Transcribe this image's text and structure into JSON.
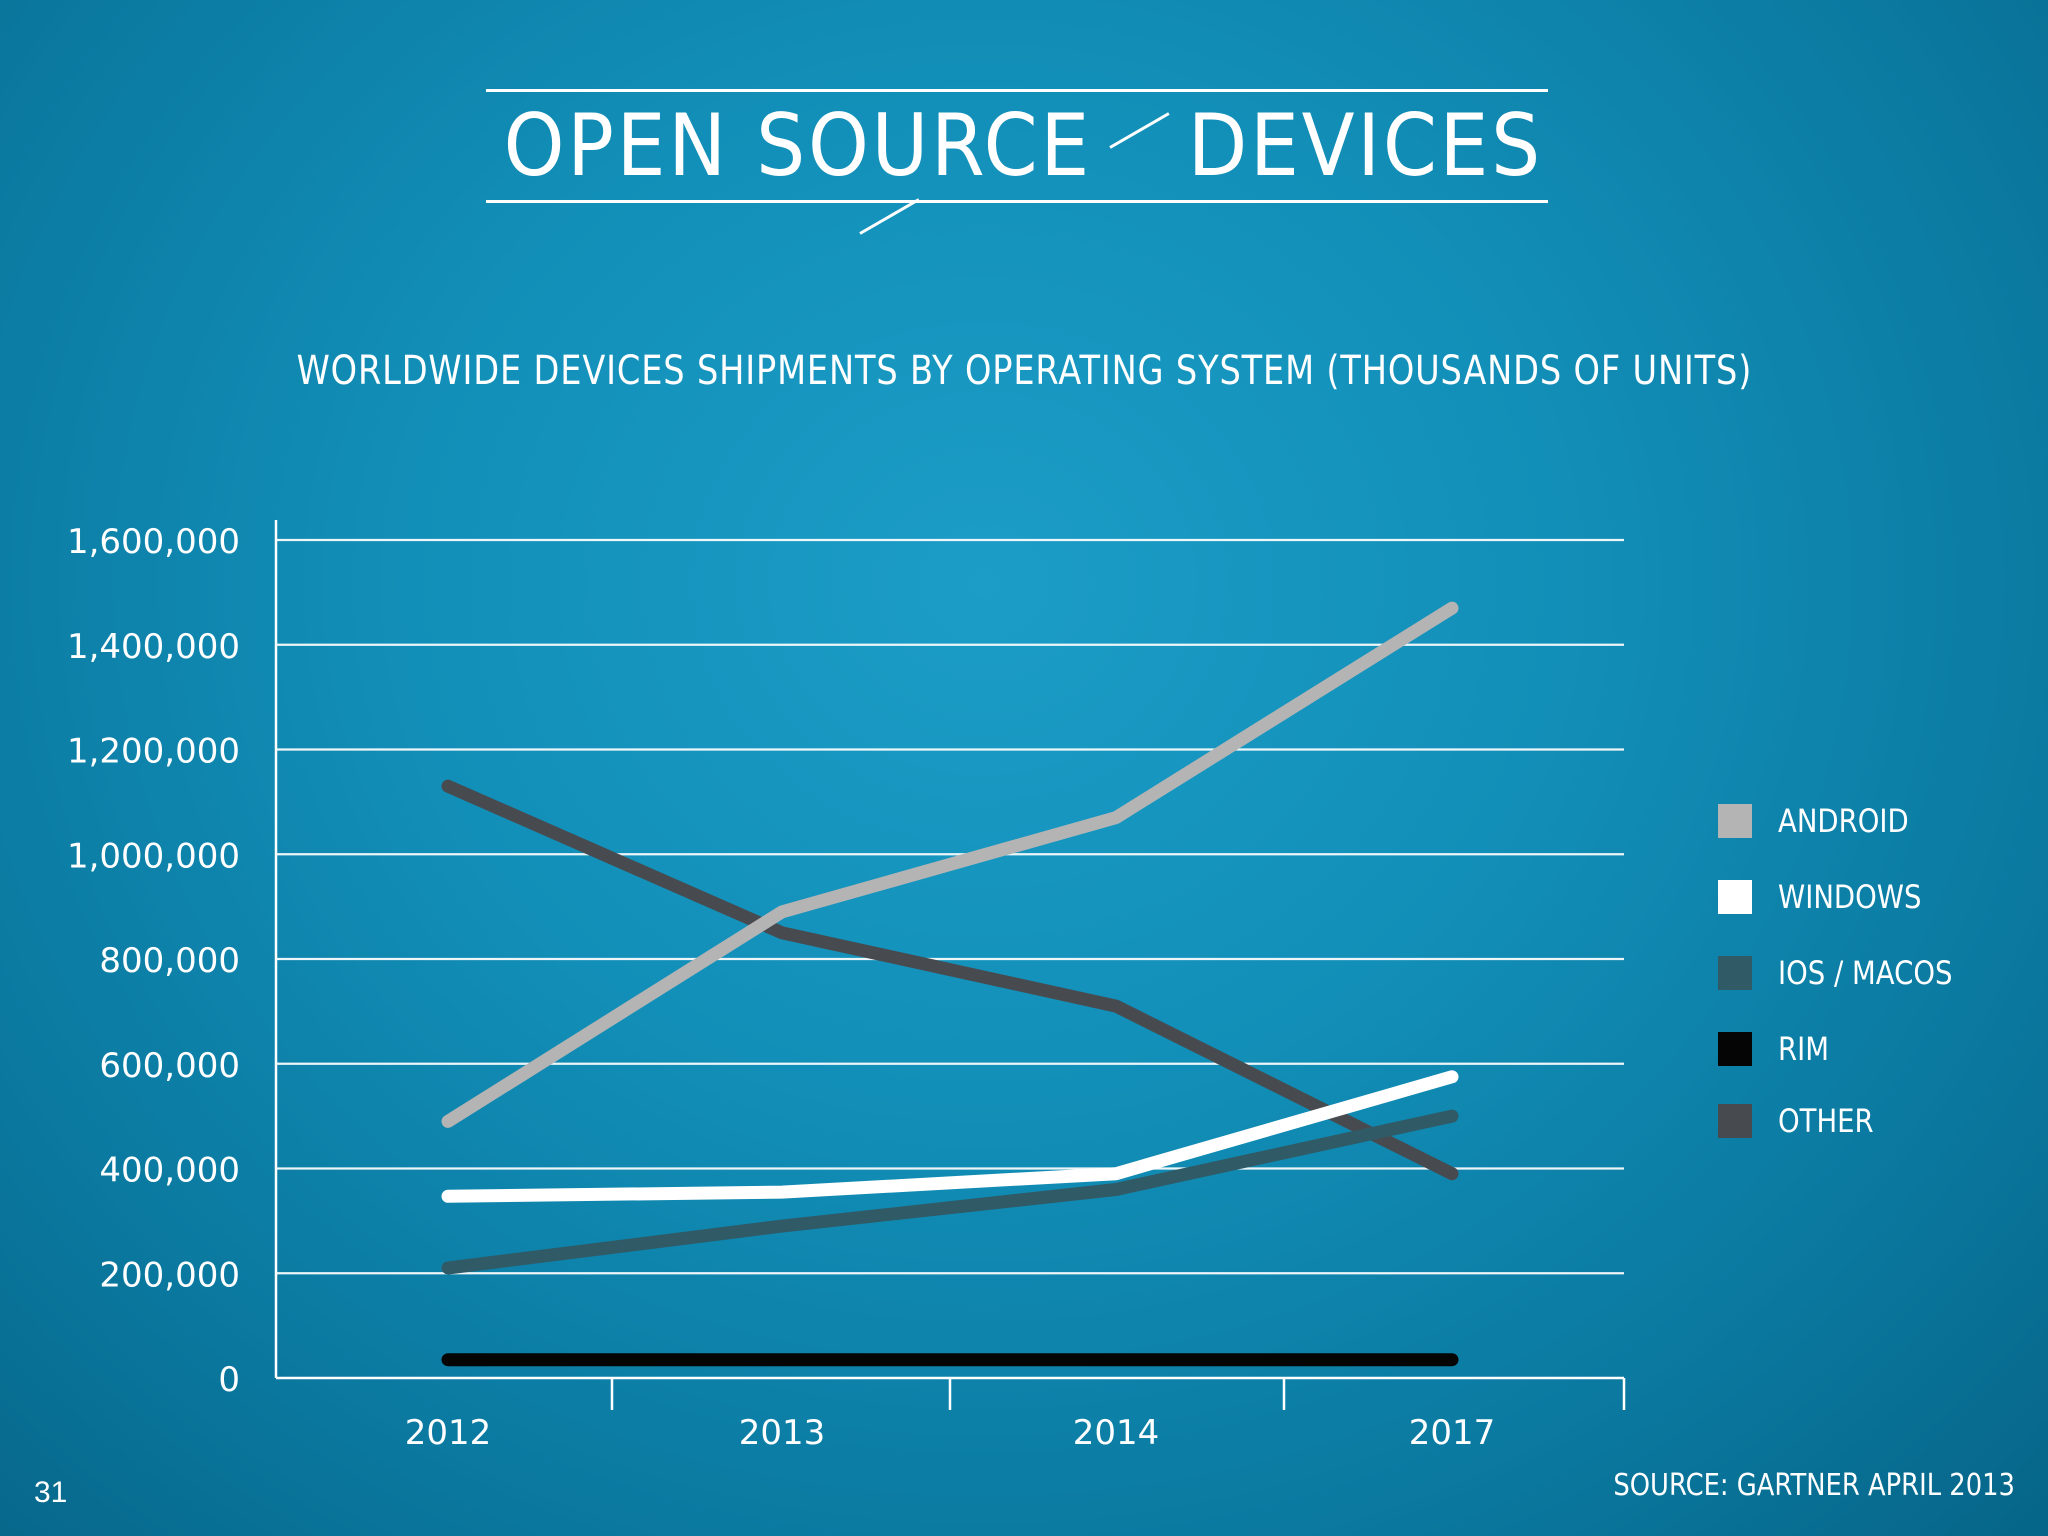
{
  "logo": {
    "left_word": "OPEN SOURCE",
    "right_word": "DEVICES",
    "icon": "heart-icon"
  },
  "page_number": "31",
  "source": "SOURCE: GARTNER APRIL 2013",
  "colors": {
    "background": "#0e87b0",
    "android": "#b4b4b4",
    "windows": "#ffffff",
    "ios_macos": "#2f5a66",
    "rim": "#050505",
    "other": "#474b4f"
  },
  "chart_data": {
    "type": "line",
    "title": "WORLDWIDE DEVICES SHIPMENTS BY OPERATING SYSTEM (THOUSANDS OF UNITS)",
    "xlabel": "",
    "ylabel": "",
    "categories": [
      "2012",
      "2013",
      "2014",
      "2017"
    ],
    "ylim": [
      0,
      1600000
    ],
    "yticks": [
      "0",
      "200,000",
      "400,000",
      "600,000",
      "800,000",
      "1,000,000",
      "1,200,000",
      "1,400,000",
      "1,600,000"
    ],
    "grid": true,
    "legend_position": "right",
    "series": [
      {
        "name": "ANDROID",
        "color": "#b4b4b4",
        "values": [
          490000,
          890000,
          1070000,
          1470000
        ]
      },
      {
        "name": "WINDOWS",
        "color": "#ffffff",
        "values": [
          347000,
          355000,
          390000,
          575000
        ]
      },
      {
        "name": "IOS / MACOS",
        "color": "#2f5a66",
        "values": [
          210000,
          290000,
          360000,
          500000
        ]
      },
      {
        "name": "RIM",
        "color": "#050505",
        "values": [
          35000,
          35000,
          35000,
          35000
        ]
      },
      {
        "name": "OTHER",
        "color": "#474b4f",
        "values": [
          1130000,
          850000,
          710000,
          390000
        ]
      }
    ]
  }
}
